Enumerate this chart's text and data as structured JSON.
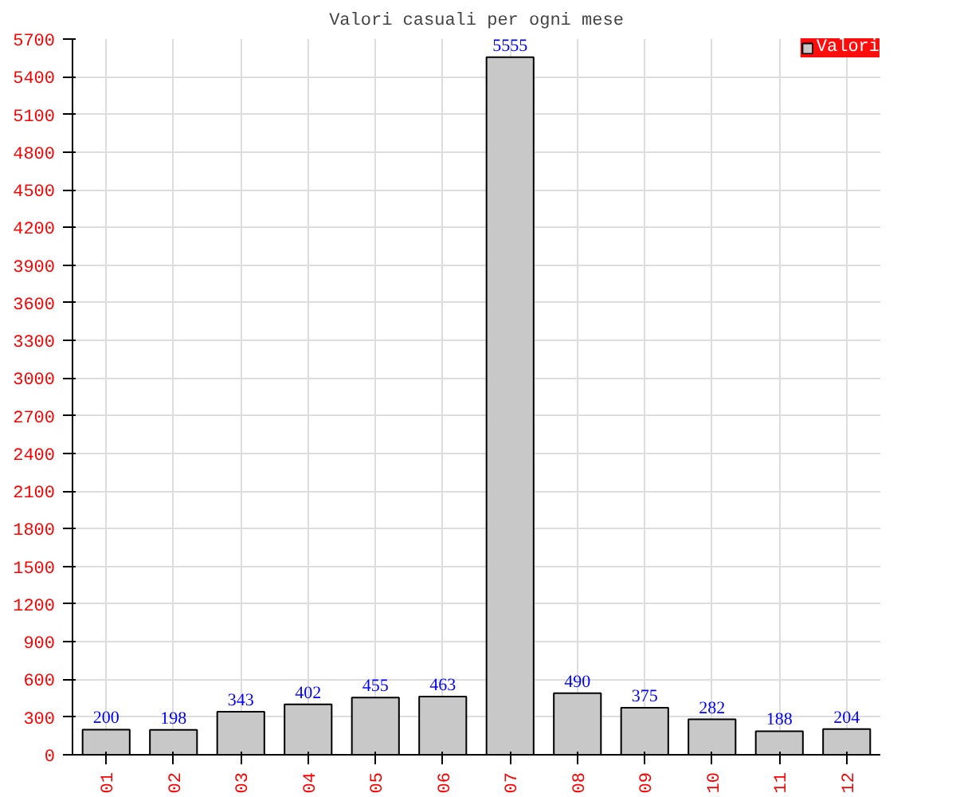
{
  "chart_data": {
    "type": "bar",
    "title": "Valori casuali per ogni mese",
    "categories": [
      "01",
      "02",
      "03",
      "04",
      "05",
      "06",
      "07",
      "08",
      "09",
      "10",
      "11",
      "12"
    ],
    "series": [
      {
        "name": "Valori",
        "color": "#c8c8c8",
        "values": [
          200,
          198,
          343,
          402,
          455,
          463,
          5555,
          490,
          375,
          282,
          188,
          204
        ]
      }
    ],
    "ylim": [
      0,
      5700
    ],
    "yticks": [
      0,
      300,
      600,
      900,
      1200,
      1500,
      1800,
      2100,
      2400,
      2700,
      3000,
      3300,
      3600,
      3900,
      4200,
      4500,
      4800,
      5100,
      5400,
      5700
    ],
    "grid": true,
    "legend": "top right",
    "data_labels": true
  }
}
